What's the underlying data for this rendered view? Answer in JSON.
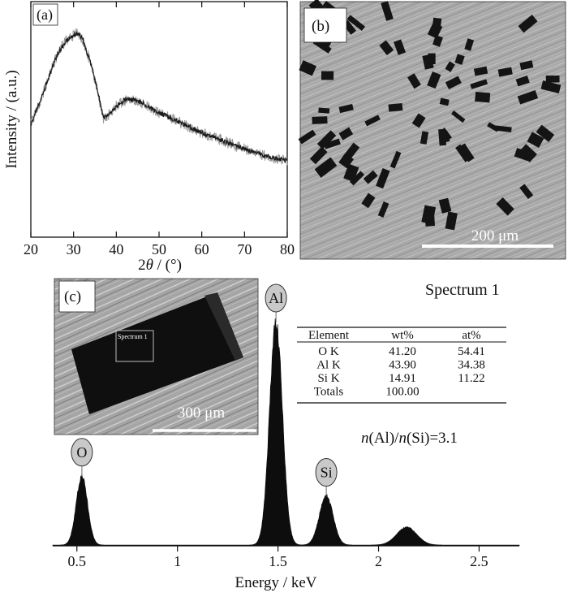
{
  "panel_a": {
    "label": "(a)",
    "ylabel": "Intensity / (a.u.)",
    "xlabel_math": "2",
    "xlabel_theta": "θ",
    "xlabel_unit": " / (°)"
  },
  "panel_b": {
    "label": "(b)",
    "scale_bar": "200 μm"
  },
  "panel_c": {
    "label": "(c)",
    "scale_bar": "300 μm",
    "roi_label": "Spectrum 1",
    "title": "Spectrum 1",
    "xlabel": "Energy / keV",
    "ratio": {
      "n1": "n",
      "el1": "(Al)/",
      "n2": "n",
      "el2": "(Si)=3.1"
    },
    "table": {
      "headers": [
        "Element",
        "wt%",
        "at%"
      ],
      "rows": [
        [
          "O K",
          "41.20",
          "54.41"
        ],
        [
          "Al K",
          "43.90",
          "34.38"
        ],
        [
          "Si K",
          "14.91",
          "11.22"
        ],
        [
          "Totals",
          "100.00",
          ""
        ]
      ]
    }
  },
  "chart_data": [
    {
      "type": "line",
      "panel": "(a)",
      "xlabel": "2θ / (°)",
      "ylabel": "Intensity / (a.u.)",
      "xlim": [
        20,
        80
      ],
      "x_ticks": [
        20,
        30,
        40,
        50,
        60,
        70,
        80
      ],
      "grid": false,
      "series": [
        {
          "x": [
            20,
            22,
            24,
            26,
            28,
            30,
            31,
            32,
            34,
            36,
            37,
            38,
            40,
            42,
            44,
            46,
            48,
            50,
            55,
            60,
            65,
            70,
            75,
            80
          ],
          "y": [
            0.45,
            0.58,
            0.72,
            0.86,
            0.95,
            0.99,
            1.0,
            0.97,
            0.82,
            0.61,
            0.49,
            0.5,
            0.56,
            0.6,
            0.6,
            0.58,
            0.55,
            0.52,
            0.46,
            0.4,
            0.35,
            0.3,
            0.26,
            0.23
          ]
        }
      ]
    },
    {
      "type": "area",
      "panel": "(c)",
      "title": "Spectrum 1",
      "xlabel": "Energy / keV",
      "xlim": [
        0.38,
        2.7
      ],
      "x_ticks": [
        0.5,
        1,
        1.5,
        2,
        2.5
      ],
      "grid": false,
      "peaks": [
        {
          "label": "O",
          "energy": 0.525,
          "height": 0.31
        },
        {
          "label": "Al",
          "energy": 1.49,
          "height": 1.0
        },
        {
          "label": "Si",
          "energy": 1.74,
          "height": 0.22
        },
        {
          "label": "",
          "energy": 2.14,
          "height": 0.08
        }
      ]
    }
  ],
  "colors": {
    "axis": "#111111",
    "line": "#1a1a1a",
    "line_halo": "#9a9a9a",
    "sem_bg": "#a8a8a8",
    "sem_flake": "#141414",
    "peak_fill": "#0d0d0d",
    "peak_label_fill": "#c9c9c9"
  }
}
